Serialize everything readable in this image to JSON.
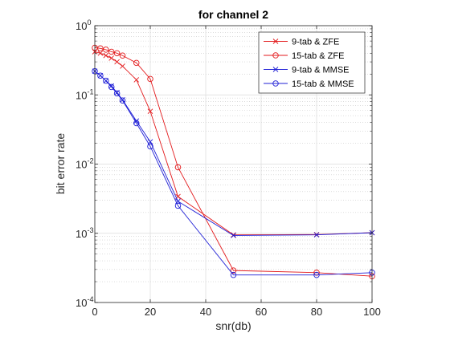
{
  "chart_data": {
    "type": "line",
    "title": "for channel 2",
    "xlabel": "snr(db)",
    "ylabel": "bit error rate",
    "xlim": [
      0,
      100
    ],
    "ylim": [
      0.0001,
      1
    ],
    "yscale": "log",
    "grid": true,
    "minor_grid": true,
    "legend_position": "top-right",
    "x_ticks": [
      "0",
      "20",
      "40",
      "60",
      "80",
      "100"
    ],
    "y_ticks": [
      {
        "base": "10",
        "exp": "0"
      },
      {
        "base": "10",
        "exp": "-1"
      },
      {
        "base": "10",
        "exp": "-2"
      },
      {
        "base": "10",
        "exp": "-3"
      },
      {
        "base": "10",
        "exp": "-4"
      }
    ],
    "series": [
      {
        "name": "9-tab & ZFE",
        "color": "#e31a1c",
        "marker": "x",
        "x": [
          0,
          2,
          4,
          6,
          8,
          10,
          15,
          20,
          30,
          50,
          80,
          100
        ],
        "y": [
          0.42,
          0.4,
          0.37,
          0.34,
          0.3,
          0.26,
          0.165,
          0.058,
          0.0034,
          0.00095,
          0.00096,
          0.00102
        ]
      },
      {
        "name": "15-tab & ZFE",
        "color": "#e31a1c",
        "marker": "o",
        "x": [
          0,
          2,
          4,
          6,
          8,
          10,
          15,
          20,
          30,
          50,
          80,
          100
        ],
        "y": [
          0.48,
          0.47,
          0.45,
          0.42,
          0.4,
          0.37,
          0.29,
          0.17,
          0.009,
          0.00029,
          0.00027,
          0.00024
        ]
      },
      {
        "name": "9-tab & MMSE",
        "color": "#1f1fd6",
        "marker": "x",
        "x": [
          0,
          2,
          4,
          6,
          8,
          10,
          15,
          20,
          30,
          50,
          80,
          100
        ],
        "y": [
          0.22,
          0.19,
          0.16,
          0.135,
          0.108,
          0.085,
          0.042,
          0.021,
          0.0029,
          0.00093,
          0.00095,
          0.00102
        ]
      },
      {
        "name": "15-tab & MMSE",
        "color": "#1f1fd6",
        "marker": "o",
        "x": [
          0,
          2,
          4,
          6,
          8,
          10,
          15,
          20,
          30,
          50,
          80,
          100
        ],
        "y": [
          0.22,
          0.19,
          0.16,
          0.13,
          0.105,
          0.083,
          0.039,
          0.018,
          0.0025,
          0.00025,
          0.00025,
          0.00027
        ]
      }
    ]
  }
}
